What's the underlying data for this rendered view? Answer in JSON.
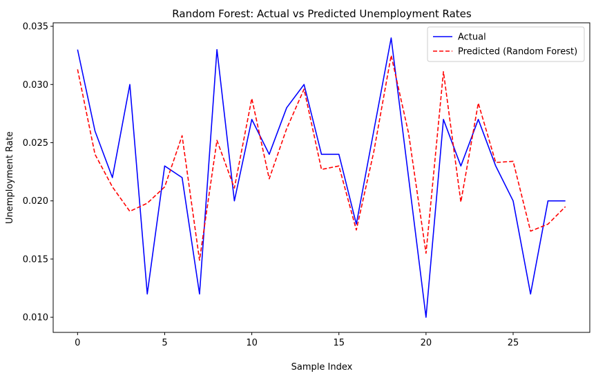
{
  "chart_data": {
    "type": "line",
    "title": "Random Forest: Actual vs Predicted Unemployment Rates",
    "xlabel": "Sample Index",
    "ylabel": "Unemployment Rate",
    "xlim": [
      -1.4,
      29.4
    ],
    "ylim": [
      0.0087,
      0.0353
    ],
    "xticks": [
      0,
      5,
      10,
      15,
      20,
      25
    ],
    "xtick_labels": [
      "0",
      "5",
      "10",
      "15",
      "20",
      "25"
    ],
    "yticks": [
      0.01,
      0.015,
      0.02,
      0.025,
      0.03,
      0.035
    ],
    "ytick_labels": [
      "0.010",
      "0.015",
      "0.020",
      "0.025",
      "0.030",
      "0.035"
    ],
    "legend_position": "top-right",
    "x": [
      0,
      1,
      2,
      3,
      4,
      5,
      6,
      7,
      8,
      9,
      10,
      11,
      12,
      13,
      14,
      15,
      16,
      17,
      18,
      19,
      20,
      21,
      22,
      23,
      24,
      25,
      26,
      27,
      28
    ],
    "series": [
      {
        "name": "Actual",
        "color": "#0000ff",
        "style": "solid",
        "values": [
          0.033,
          0.026,
          0.022,
          0.03,
          0.012,
          0.023,
          0.022,
          0.012,
          0.033,
          0.02,
          0.027,
          0.024,
          0.028,
          0.03,
          0.024,
          0.024,
          0.018,
          0.026,
          0.034,
          0.022,
          0.01,
          0.027,
          0.023,
          0.027,
          0.023,
          0.02,
          0.012,
          0.02,
          0.02
        ]
      },
      {
        "name": "Predicted (Random Forest)",
        "color": "#ff0000",
        "style": "dashed",
        "values": [
          0.0313,
          0.024,
          0.0212,
          0.0191,
          0.0198,
          0.0212,
          0.0256,
          0.0149,
          0.0252,
          0.0211,
          0.0288,
          0.0219,
          0.0262,
          0.0296,
          0.0227,
          0.023,
          0.0175,
          0.0242,
          0.0325,
          0.0258,
          0.0155,
          0.0311,
          0.0199,
          0.0284,
          0.0233,
          0.0234,
          0.0174,
          0.018,
          0.0195
        ]
      }
    ]
  }
}
